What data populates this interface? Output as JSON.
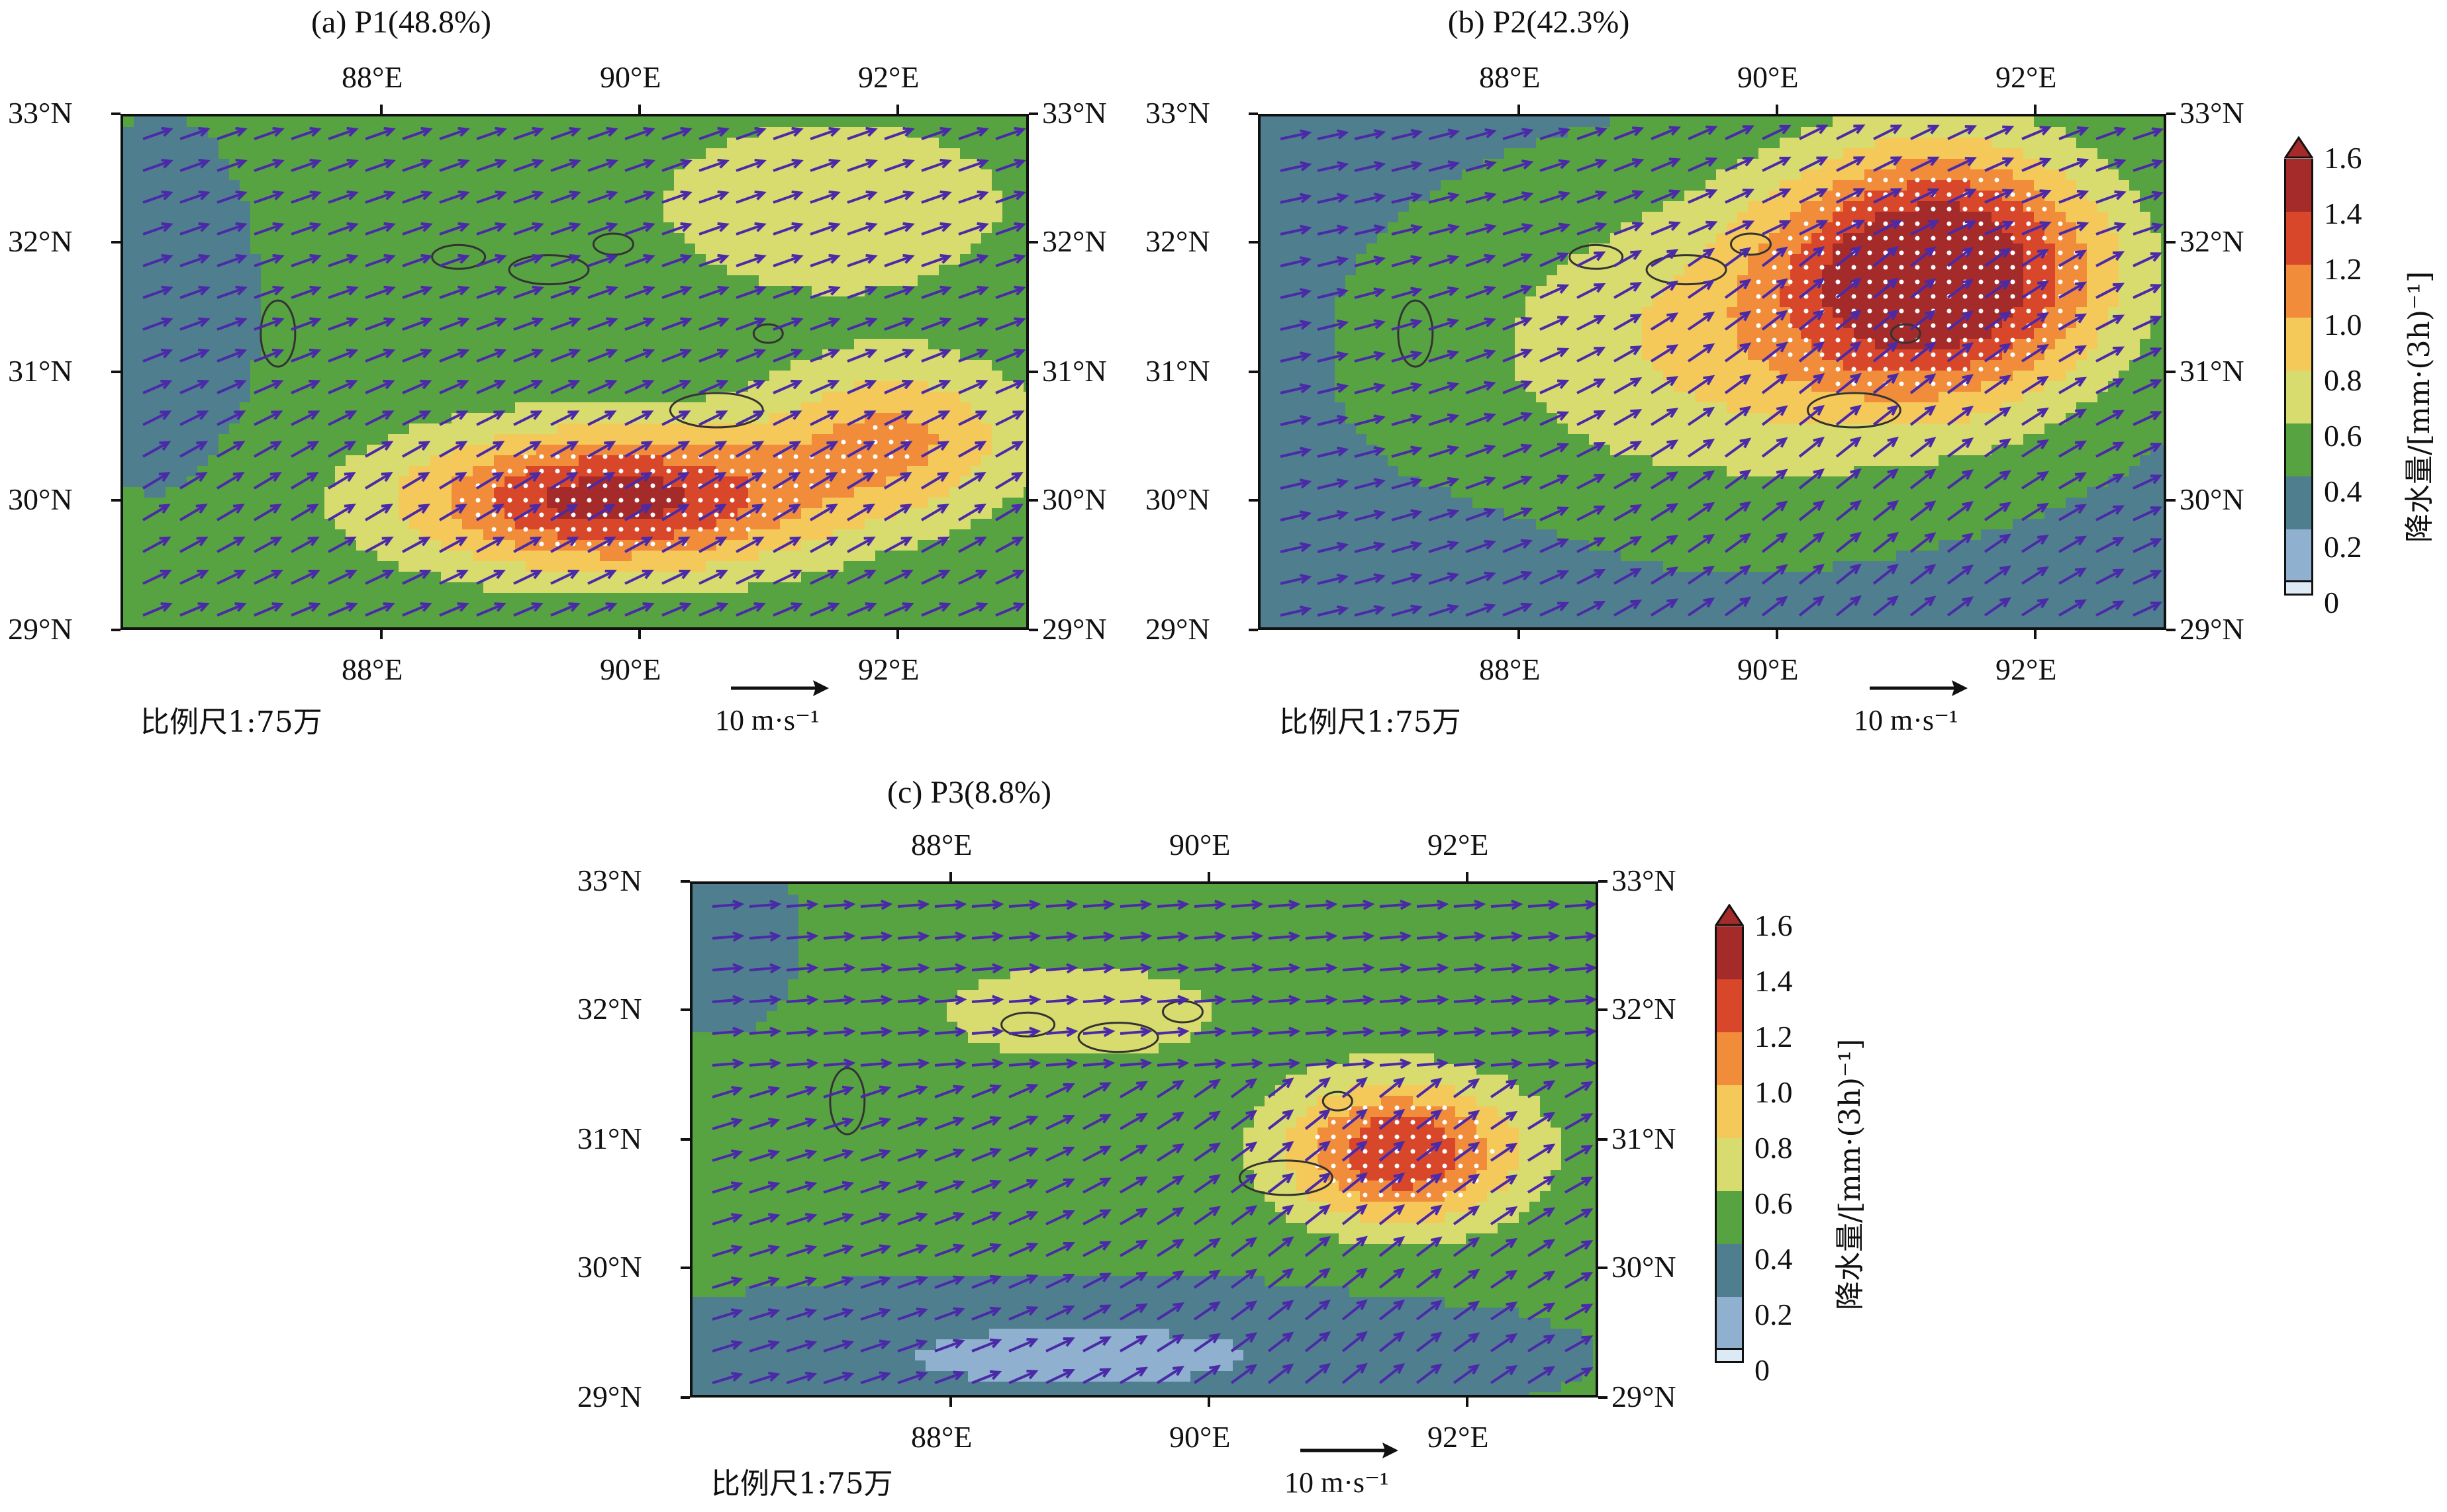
{
  "panels": [
    {
      "id": "a",
      "title": "(a) P1(48.8%)",
      "scale_label": "比例尺1:75万",
      "ref_label": "10 m·s⁻¹"
    },
    {
      "id": "b",
      "title": "(b) P2(42.3%)",
      "scale_label": "比例尺1:75万",
      "ref_label": "10 m·s⁻¹"
    },
    {
      "id": "c",
      "title": "(c) P3(8.8%)",
      "scale_label": "比例尺1:75万",
      "ref_label": "10 m·s⁻¹"
    }
  ],
  "axes": {
    "lon_labels": [
      "88°E",
      "90°E",
      "92°E"
    ],
    "lat_labels": [
      "33°N",
      "32°N",
      "31°N",
      "30°N",
      "29°N"
    ]
  },
  "colorbar": {
    "title": "降水量/[mm·(3h)⁻¹]",
    "ticks": [
      "1.6",
      "1.4",
      "1.2",
      "1.0",
      "0.8",
      "0.6",
      "0.4",
      "0.2",
      "0"
    ],
    "colors": [
      "#a52a2a",
      "#d9472b",
      "#f08c3a",
      "#f5c85a",
      "#d8dc6e",
      "#57a342",
      "#4f7f8f",
      "#8fb0cf",
      "#dbeaf4"
    ]
  },
  "map_data": {
    "extent": {
      "lon": [
        86.0,
        93.0
      ],
      "lat": [
        29.0,
        33.0
      ]
    },
    "patterns": [
      {
        "panel": "a",
        "max_center": [
          89.5,
          30.0
        ],
        "max_value": 1.5
      },
      {
        "panel": "b",
        "max_center": [
          91.3,
          31.9
        ],
        "max_value": 1.6
      },
      {
        "panel": "c",
        "max_center": [
          91.5,
          30.9
        ],
        "max_value": 1.5
      }
    ]
  }
}
